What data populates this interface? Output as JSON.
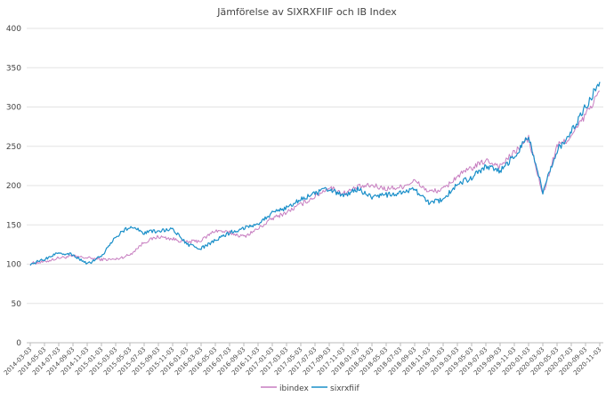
{
  "chart_data": {
    "type": "line",
    "title": "Jämförelse av SIXRXFIIF och IB Index",
    "xlabel": "",
    "ylabel": "",
    "ylim": [
      0,
      400
    ],
    "yticks": [
      0,
      50,
      100,
      150,
      200,
      250,
      300,
      350,
      400
    ],
    "grid": true,
    "legend_position": "bottom-center",
    "x_tick_labels": [
      "2014-03-03",
      "2014-05-03",
      "2014-07-03",
      "2014-09-03",
      "2014-11-03",
      "2015-01-03",
      "2015-03-03",
      "2015-05-03",
      "2015-07-03",
      "2015-09-03",
      "2015-11-03",
      "2016-01-03",
      "2016-03-03",
      "2016-05-03",
      "2016-07-03",
      "2016-09-03",
      "2016-11-03",
      "2017-01-03",
      "2017-03-03",
      "2017-05-03",
      "2017-07-03",
      "2017-09-03",
      "2017-11-03",
      "2018-01-03",
      "2018-03-03",
      "2018-05-03",
      "2018-07-03",
      "2018-09-03",
      "2018-11-03",
      "2019-01-03",
      "2019-03-03",
      "2019-05-03",
      "2019-07-03",
      "2019-09-03",
      "2019-11-03",
      "2020-01-03",
      "2020-03-03",
      "2020-05-03",
      "2020-07-03",
      "2020-09-03",
      "2020-11-03"
    ],
    "series": [
      {
        "name": "ibindex",
        "color": "#c77dc0",
        "values": [
          101,
          103,
          108,
          110,
          108,
          106,
          106,
          112,
          128,
          135,
          132,
          128,
          130,
          143,
          140,
          135,
          145,
          158,
          166,
          176,
          186,
          198,
          190,
          198,
          200,
          196,
          198,
          206,
          192,
          195,
          212,
          222,
          232,
          225,
          242,
          260,
          188,
          250,
          262,
          290,
          320
        ]
      },
      {
        "name": "sixrxfiif",
        "color": "#1a8fc9",
        "values": [
          100,
          106,
          115,
          112,
          100,
          110,
          135,
          148,
          140,
          142,
          145,
          125,
          120,
          130,
          140,
          146,
          152,
          165,
          172,
          182,
          190,
          196,
          186,
          196,
          185,
          188,
          190,
          195,
          178,
          182,
          202,
          210,
          225,
          218,
          238,
          262,
          192,
          245,
          268,
          300,
          332
        ]
      }
    ]
  }
}
